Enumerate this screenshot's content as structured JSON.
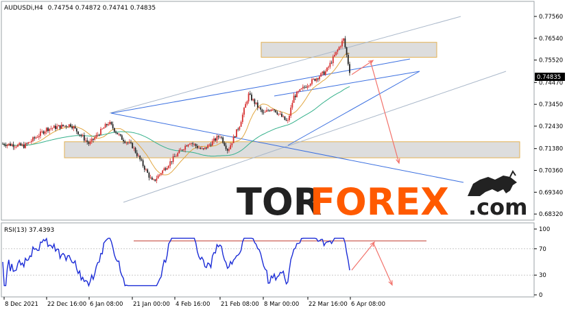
{
  "window": {
    "symbol_label": "AUDUSDi,H4",
    "ohlc_label": "0.74754 0.74872 0.74741 0.74835"
  },
  "watermark": {
    "part1": "TOR",
    "part2": "FOREX",
    "part3": ".com"
  },
  "colors": {
    "background": "#ffffff",
    "candle_up": "#d62e2e",
    "candle_down": "#222222",
    "ma_fast": "#e2a640",
    "ma_slow": "#33b08a",
    "trendline": "#3a6fe0",
    "channel": "#a9b7c9",
    "zone_fill": "#d9d9d9",
    "zone_border": "#e2b052",
    "forecast_arrow": "#f2726b",
    "rsi_line": "#1a2bd6",
    "rsi_resistance": "#c0392b",
    "watermark_dark": "#222222",
    "watermark_orange": "#ff5a00"
  },
  "chart_data": [
    {
      "type": "line",
      "subtype": "candlestick",
      "title": "AUDUSDi,H4",
      "ylim": [
        0.681,
        0.782
      ],
      "y_ticks": [
        "0.77560",
        "0.76540",
        "0.75520",
        "0.74470",
        "0.73450",
        "0.72430",
        "0.71380",
        "0.70360",
        "0.69340",
        "0.68320"
      ],
      "x_tick_labels": [
        "8 Dec 2021",
        "22 Dec 16:00",
        "6 Jan 08:00",
        "21 Jan 00:00",
        "4 Feb 16:00",
        "21 Feb 08:00",
        "8 Mar 00:00",
        "22 Mar 16:00",
        "6 Apr 08:00"
      ],
      "current_price_label": "0.74835",
      "current_price": 0.74835,
      "approx_close_path": [
        {
          "x": "8 Dec 2021",
          "y": 0.716
        },
        {
          "x": "15 Dec 2021",
          "y": 0.715
        },
        {
          "x": "22 Dec 16:00",
          "y": 0.723
        },
        {
          "x": "31 Dec 2021",
          "y": 0.725
        },
        {
          "x": "6 Jan 08:00",
          "y": 0.716
        },
        {
          "x": "13 Jan 2022",
          "y": 0.726
        },
        {
          "x": "17 Jan 2022",
          "y": 0.719
        },
        {
          "x": "21 Jan 00:00",
          "y": 0.715
        },
        {
          "x": "28 Jan 2022",
          "y": 0.698
        },
        {
          "x": "4 Feb 16:00",
          "y": 0.71
        },
        {
          "x": "10 Feb 2022",
          "y": 0.717
        },
        {
          "x": "15 Feb 2022",
          "y": 0.713
        },
        {
          "x": "21 Feb 08:00",
          "y": 0.72
        },
        {
          "x": "24 Feb 2022",
          "y": 0.713
        },
        {
          "x": "28 Feb 2022",
          "y": 0.725
        },
        {
          "x": "3 Mar 2022",
          "y": 0.739
        },
        {
          "x": "8 Mar 00:00",
          "y": 0.73
        },
        {
          "x": "11 Mar 2022",
          "y": 0.733
        },
        {
          "x": "16 Mar 2022",
          "y": 0.726
        },
        {
          "x": "18 Mar 2022",
          "y": 0.738
        },
        {
          "x": "22 Mar 16:00",
          "y": 0.744
        },
        {
          "x": "29 Mar 2022",
          "y": 0.75
        },
        {
          "x": "4 Apr 2022",
          "y": 0.765
        },
        {
          "x": "6 Apr 08:00",
          "y": 0.7484
        }
      ],
      "zones": [
        {
          "low": 0.7565,
          "high": 0.7635
        },
        {
          "low": 0.7095,
          "high": 0.717
        }
      ],
      "forecast": {
        "from": 0.7484,
        "peak": 0.755,
        "target": 0.707
      }
    },
    {
      "type": "line",
      "title": "RSI(13) 37.4393",
      "ylim": [
        0,
        100
      ],
      "y_ticks": [
        "100",
        "70",
        "30",
        "0"
      ],
      "series": [
        {
          "name": "RSI(13)",
          "last_value": 37.4393
        }
      ],
      "resistance_level": 82,
      "forecast": {
        "from": 37.4393,
        "peak": 80,
        "target": 15
      }
    }
  ]
}
